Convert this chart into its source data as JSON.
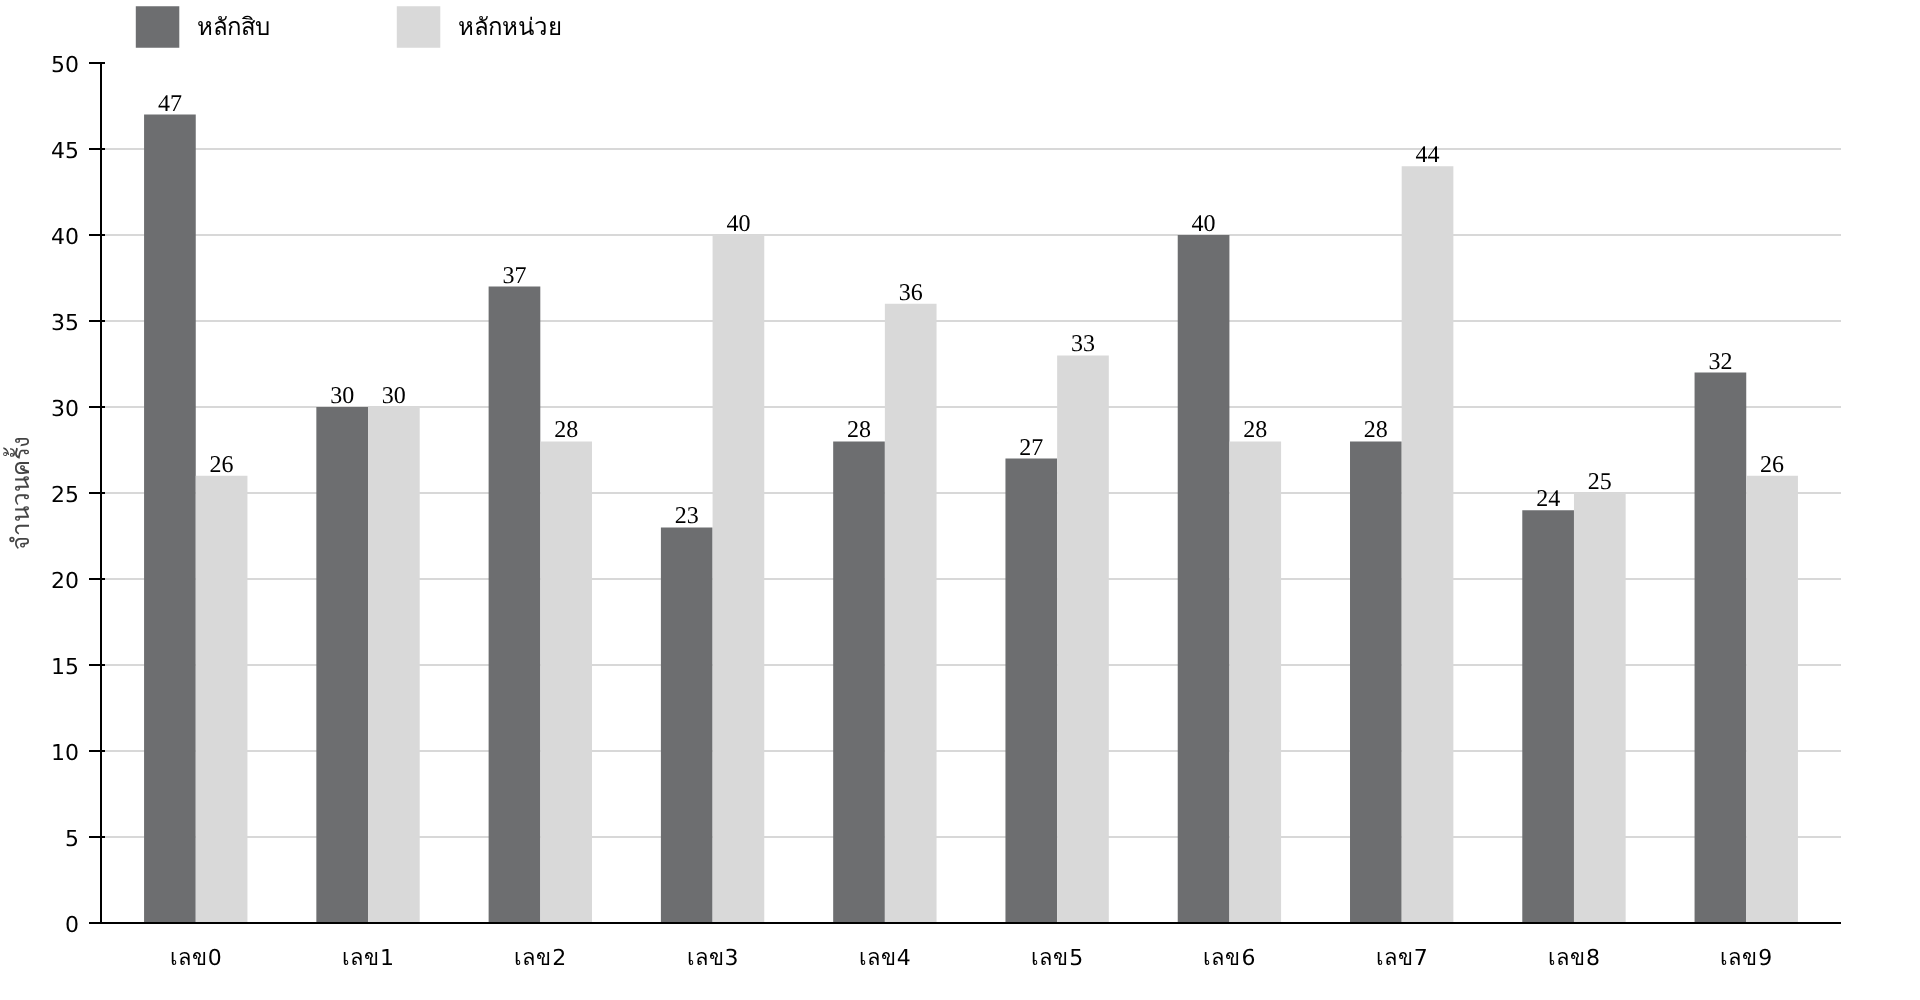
{
  "chart_data": {
    "type": "bar",
    "ylabel": "จำนวนครั้ง",
    "categories": [
      "เลข0",
      "เลข1",
      "เลข2",
      "เลข3",
      "เลข4",
      "เลข5",
      "เลข6",
      "เลข7",
      "เลข8",
      "เลข9"
    ],
    "series": [
      {
        "name": "หลักสิบ",
        "color": "#6d6e70",
        "values": [
          47,
          30,
          37,
          23,
          28,
          27,
          40,
          28,
          24,
          32
        ]
      },
      {
        "name": "หลักหน่วย",
        "color": "#d9d9d9",
        "values": [
          26,
          30,
          28,
          40,
          36,
          33,
          28,
          44,
          25,
          26
        ]
      }
    ],
    "ylim": [
      0,
      50
    ],
    "yticks": [
      0,
      5,
      10,
      15,
      20,
      25,
      30,
      35,
      40,
      45,
      50
    ],
    "grid": "y",
    "legend": "top left",
    "data_labels": true
  }
}
